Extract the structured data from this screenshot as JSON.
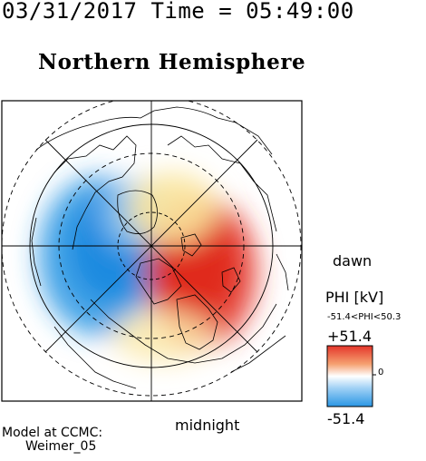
{
  "header": {
    "time_line": "03/31/2017 Time = 05:49:00"
  },
  "map": {
    "title": "Northern Hemisphere",
    "label_dawn": "dawn",
    "label_midnight": "midnight",
    "projection": "polar, north pole centered, noon at top",
    "colors": {
      "positive": "#e4352a",
      "negative": "#2a96e4",
      "neutral": "#ffffff",
      "dusk_cell": "#7fbef0",
      "dawn_cell": "#f07f5c"
    }
  },
  "colorbar": {
    "label": "PHI [kV]",
    "range_text": "-51.4<PHI<50.3",
    "max_label": "+51.4",
    "min_label": "-51.4",
    "zero_label": "0",
    "min": -51.4,
    "max": 51.4
  },
  "footer": {
    "model_line1": "Model at CCMC:",
    "model_line2": "Weimer_05"
  }
}
